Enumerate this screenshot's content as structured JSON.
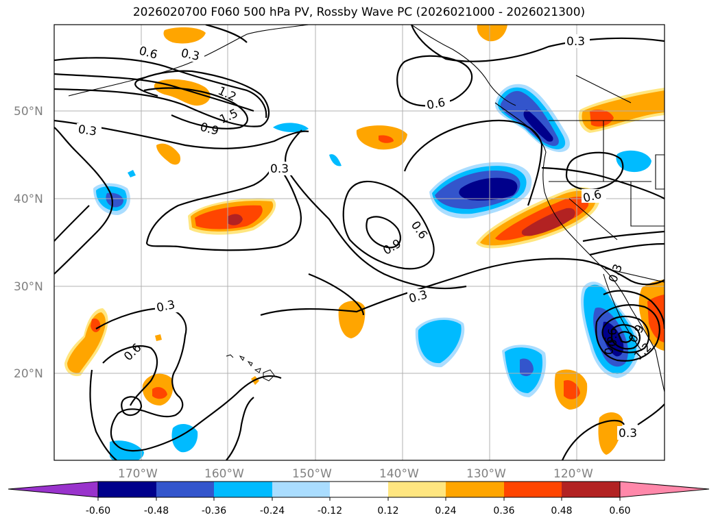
{
  "title": "2026020700 F060 500 hPa PV, Rossby Wave PC (2026021000 - 2026021300)",
  "lat_labels": [
    "50°N",
    "40°N",
    "30°N",
    "20°N"
  ],
  "lon_labels": [
    "170°W",
    "160°W",
    "150°W",
    "140°W",
    "130°W",
    "120°W"
  ],
  "colorbar": {
    "levels": [
      "-0.60",
      "-0.48",
      "-0.36",
      "-0.24",
      "-0.12",
      "0.12",
      "0.24",
      "0.36",
      "0.48",
      "0.60"
    ],
    "colors": [
      "#9933cc",
      "#00008b",
      "#3355cc",
      "#00bbff",
      "#aaddff",
      "#ffffff",
      "#ffe680",
      "#ffa500",
      "#ff4500",
      "#b22222",
      "#ff88aa"
    ]
  },
  "contour_labels": [
    "0.6",
    "0.3",
    "1.2",
    "1.5",
    "0.9",
    "0.3",
    "0.3",
    "0.6",
    "0.3",
    "0.6",
    "0.9",
    "0.6",
    "0.3",
    "0.3",
    "0.6",
    "0.6",
    "0.3",
    "0.6",
    "0.9",
    "1.2",
    "0.3"
  ],
  "shading_colors": {
    "neg_light": "#aaddff",
    "neg1": "#00bbff",
    "neg2": "#3355cc",
    "neg3": "#00008b",
    "pos_light": "#ffe680",
    "pos1": "#ffa500",
    "pos2": "#ff4500",
    "pos3": "#b22222"
  }
}
